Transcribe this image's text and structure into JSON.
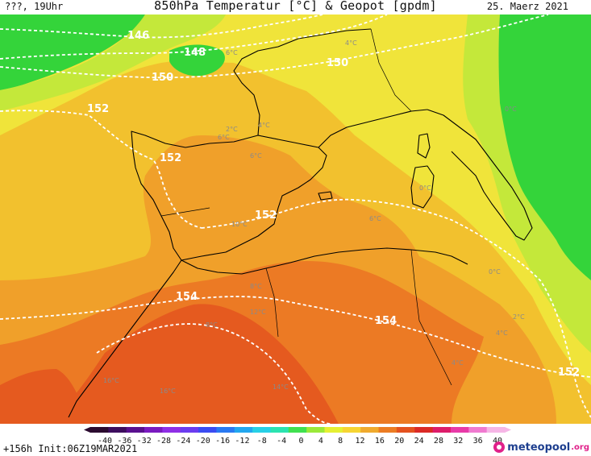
{
  "header": {
    "left": "???, 19Uhr",
    "title": "850hPa Temperatur [°C] & Geopot [gpdm]",
    "date": "25. Maerz 2021"
  },
  "footer": {
    "left": "+156h Init:06Z19MAR2021",
    "logo_main": "meteopool",
    "logo_tld": ".org"
  },
  "colorbar": {
    "ticks": [
      "-40",
      "-36",
      "-32",
      "-28",
      "-24",
      "-20",
      "-16",
      "-12",
      "-8",
      "-4",
      "0",
      "4",
      "8",
      "12",
      "16",
      "20",
      "24",
      "28",
      "32",
      "36",
      "40"
    ],
    "colors": [
      "#2b0a2f",
      "#3d0d5e",
      "#5a108f",
      "#7a1bc0",
      "#8f2fe6",
      "#6b3cf0",
      "#3b4cf2",
      "#2a79f2",
      "#22a7ef",
      "#27d0e6",
      "#2be3b0",
      "#40e050",
      "#9be93a",
      "#e5f033",
      "#f6d533",
      "#f0aa2e",
      "#ec7c23",
      "#e4521f",
      "#db2a26",
      "#dd1c6a",
      "#e83aa8",
      "#f07ad0",
      "#f6b6e6"
    ],
    "range": [
      -40,
      40
    ]
  },
  "map": {
    "geopot_labels": [
      "146",
      "148",
      "150",
      "150",
      "152",
      "152",
      "152",
      "154",
      "154",
      "152"
    ],
    "temp_labels": [
      "6°C",
      "4°C",
      "0°C",
      "2°C",
      "4°C",
      "6°C",
      "6°C",
      "10°C",
      "6°C",
      "0°C",
      "8°C",
      "12°C",
      "16°C",
      "16°C",
      "14°C",
      "2°C",
      "4°C",
      "0°C",
      "8°C",
      "4°C"
    ],
    "temp_colors": {
      "green": "#34d43a",
      "yellow_green": "#c4e83a",
      "yellow": "#f0e43a",
      "light_orange": "#f2c12e",
      "orange": "#f0a02a",
      "deep_orange": "#ec7a24",
      "red_orange": "#e55a1f"
    }
  }
}
